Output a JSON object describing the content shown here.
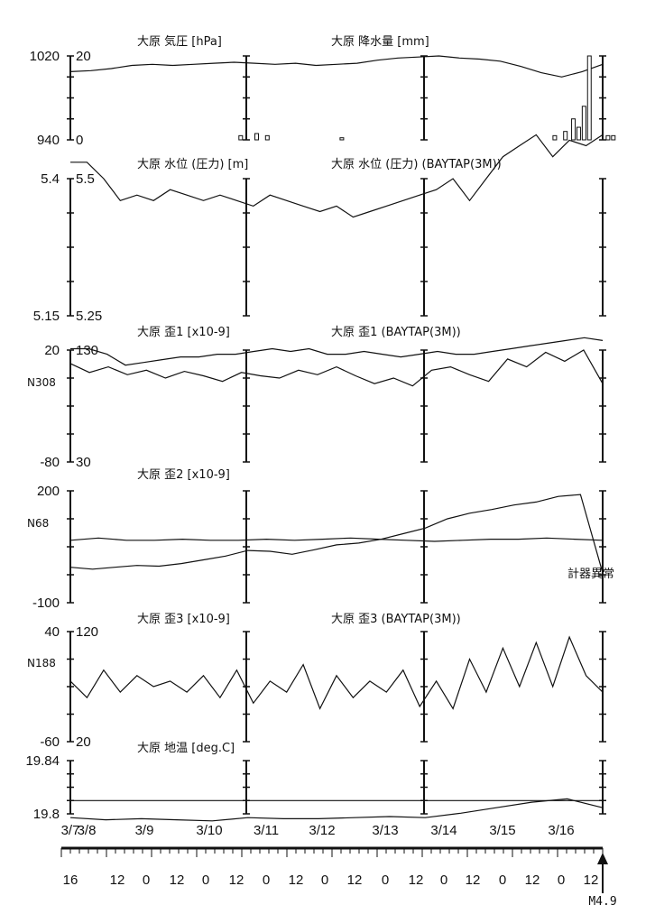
{
  "chart_data": [
    {
      "id": "p1",
      "type": "line",
      "titles": [
        "大原 気圧 [hPa]",
        "大原 降水量 [mm]"
      ],
      "y_left": {
        "top": "1020",
        "bottom": "940",
        "range": [
          940,
          1020
        ]
      },
      "y_right": {
        "top": "20",
        "bottom": "0",
        "range": [
          0,
          20
        ]
      },
      "series": [
        {
          "values": [
            1005,
            1006,
            1008,
            1011,
            1012,
            1011,
            1012,
            1013,
            1014,
            1013,
            1012,
            1013,
            1011,
            1012,
            1013,
            1016,
            1018,
            1019,
            1020,
            1018,
            1017,
            1015,
            1010,
            1004,
            1000,
            1005,
            1012
          ]
        },
        {
          "type": "bar",
          "bars": [
            [
              3.2,
              1
            ],
            [
              3.5,
              1.5
            ],
            [
              3.7,
              1
            ],
            [
              5.1,
              0.5
            ],
            [
              9.1,
              1
            ],
            [
              9.3,
              2
            ],
            [
              9.45,
              5
            ],
            [
              9.55,
              3
            ],
            [
              9.65,
              8
            ],
            [
              9.75,
              20
            ],
            [
              10.1,
              1
            ],
            [
              10.2,
              1
            ]
          ]
        }
      ]
    },
    {
      "id": "p2",
      "type": "line",
      "titles": [
        "大原 水位 (圧力) [m]",
        "大原 水位 (圧力) (BAYTAP(3M))"
      ],
      "y_left": {
        "top": "5.4",
        "bottom": "5.15",
        "range": [
          5.15,
          5.4
        ]
      },
      "y_right": {
        "top": "5.5",
        "bottom": "5.25",
        "range": [
          5.25,
          5.5
        ]
      },
      "series": [
        {
          "values": [
            5.43,
            5.43,
            5.4,
            5.36,
            5.37,
            5.36,
            5.38,
            5.37,
            5.36,
            5.37,
            5.36,
            5.35,
            5.37,
            5.36,
            5.35,
            5.34,
            5.35,
            5.33,
            5.34,
            5.35,
            5.36,
            5.37,
            5.38,
            5.4,
            5.36,
            5.4,
            5.44,
            5.46,
            5.48,
            5.44,
            5.47,
            5.46,
            5.48
          ]
        },
        {
          "values": [
            5.19,
            5.19,
            5.18,
            5.16,
            5.165,
            5.17,
            5.175,
            5.175,
            5.18,
            5.18,
            5.185,
            5.19,
            5.185,
            5.19,
            5.18,
            5.18,
            5.185,
            5.18,
            5.175,
            5.18,
            5.185,
            5.18,
            5.18,
            5.185,
            5.19,
            5.195,
            5.2,
            5.205,
            5.21,
            5.205
          ]
        }
      ]
    },
    {
      "id": "p3",
      "type": "line",
      "titles": [
        "大原 歪1 [x10-9]",
        "大原 歪1 (BAYTAP(3M))"
      ],
      "y_left": {
        "top": "20",
        "bottom": "-80",
        "range": [
          -80,
          20
        ],
        "label": "N308"
      },
      "y_right": {
        "top": "130",
        "bottom": "30",
        "range": [
          30,
          130
        ]
      },
      "series": [
        {
          "values": [
            8,
            0,
            5,
            -2,
            2,
            -5,
            1,
            -3,
            -8,
            0,
            -3,
            -5,
            2,
            -2,
            5,
            -3,
            -10,
            -5,
            -12,
            2,
            5,
            -2,
            -8,
            12,
            5,
            18,
            10,
            20,
            -10
          ]
        },
        {
          "values": [
            -40,
            -38,
            -40,
            -40,
            -39,
            -40,
            -40,
            -39,
            -40,
            -39,
            -38,
            -39,
            -40,
            -41,
            -40,
            -39,
            -39,
            -38,
            -39,
            -40
          ]
        }
      ]
    },
    {
      "id": "p4",
      "type": "line",
      "titles": [
        "大原 歪2 [x10-9]"
      ],
      "y_left": {
        "top": "200",
        "bottom": "-100",
        "range": [
          -100,
          200
        ],
        "label": "N68"
      },
      "series": [
        {
          "values": [
            -5,
            -10,
            -5,
            0,
            -2,
            5,
            15,
            25,
            40,
            38,
            30,
            42,
            55,
            60,
            70,
            85,
            100,
            125,
            140,
            150,
            162,
            170,
            185,
            190,
            -20
          ]
        }
      ],
      "annotation": "計器異常"
    },
    {
      "id": "p5",
      "type": "line",
      "titles": [
        "大原 歪3 [x10-9]",
        "大原 歪3 (BAYTAP(3M))"
      ],
      "y_left": {
        "top": "40",
        "bottom": "-60",
        "range": [
          -60,
          40
        ],
        "label": "N188"
      },
      "y_right": {
        "top": "120",
        "bottom": "20",
        "range": [
          20,
          120
        ]
      },
      "series": [
        {
          "values": [
            -5,
            -20,
            5,
            -15,
            0,
            -10,
            -5,
            -15,
            0,
            -20,
            5,
            -25,
            -5,
            -15,
            10,
            -30,
            0,
            -20,
            -5,
            -15,
            5,
            -28,
            -5,
            -30,
            15,
            -15,
            25,
            -10,
            30,
            -10,
            35,
            0,
            -15
          ]
        },
        {
          "values": [
            -49,
            -51,
            -50,
            -51,
            -52,
            -49,
            -50,
            -50,
            -49,
            -48,
            -49,
            -45,
            -40,
            -35,
            -32,
            -40
          ]
        }
      ]
    },
    {
      "id": "p6",
      "type": "line",
      "titles": [
        "大原 地温 [deg.C]"
      ],
      "y_left": {
        "top": "19.84",
        "bottom": "19.8",
        "range": [
          19.8,
          19.84
        ]
      },
      "series": [
        {
          "values": [
            19.81,
            19.81,
            19.81,
            19.81,
            19.81,
            19.81,
            19.81,
            19.81,
            19.81,
            19.81,
            19.81,
            19.81,
            19.81
          ]
        }
      ]
    }
  ],
  "x_axis": {
    "dates": [
      "3/7",
      "3/8",
      "3/9",
      "3/10",
      "3/11",
      "3/12",
      "3/13",
      "3/14",
      "3/15",
      "3/16"
    ],
    "hours": [
      "16",
      "12",
      "0",
      "12",
      "0",
      "12",
      "0",
      "12",
      "0",
      "12",
      "0",
      "12",
      "0",
      "12",
      "0",
      "12",
      "0",
      "12"
    ],
    "event": "M4.9"
  }
}
